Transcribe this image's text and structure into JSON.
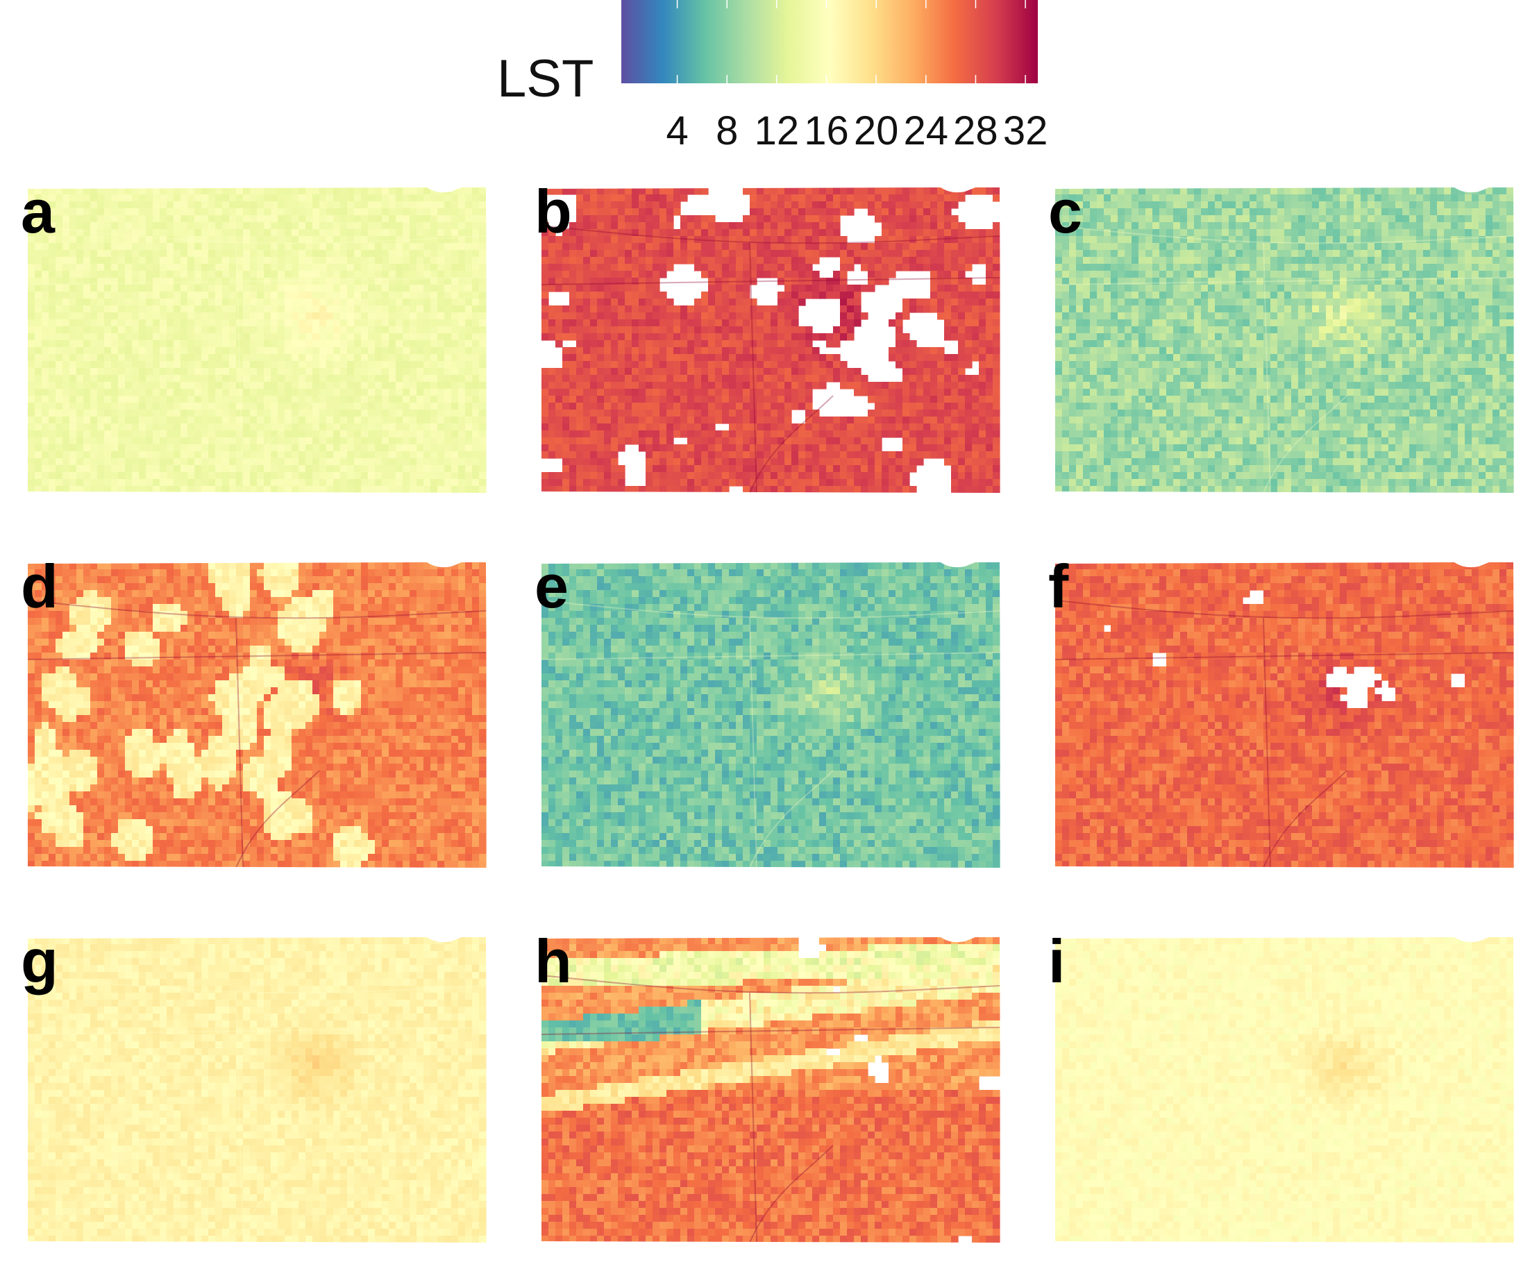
{
  "legend": {
    "title": "LST",
    "ticks": [
      4,
      8,
      12,
      16,
      20,
      24,
      28,
      32
    ],
    "tick_labels": [
      "4",
      "8",
      "12",
      "16",
      "20",
      "24",
      "28",
      "32"
    ],
    "range": [
      -0.5,
      33
    ]
  },
  "palette": [
    "#5e4fa2",
    "#3288bd",
    "#66c2a5",
    "#abdda4",
    "#e6f598",
    "#ffffbf",
    "#fee08b",
    "#fdae61",
    "#f46d43",
    "#d53e4f",
    "#9e0142"
  ],
  "panels": [
    {
      "label": "a",
      "base_lst": 14.5,
      "variation": 1.2,
      "hot_center": true,
      "gaps": "none",
      "clouds": "none"
    },
    {
      "label": "b",
      "base_lst": 28.5,
      "variation": 1.6,
      "hot_center": true,
      "gaps": "heavy",
      "clouds": "none"
    },
    {
      "label": "c",
      "base_lst": 9.0,
      "variation": 2.4,
      "hot_center": true,
      "gaps": "none",
      "clouds": "none"
    },
    {
      "label": "d",
      "base_lst": 25.0,
      "variation": 1.8,
      "hot_center": true,
      "gaps": "none",
      "clouds": "scattered"
    },
    {
      "label": "e",
      "base_lst": 7.0,
      "variation": 2.2,
      "hot_center": true,
      "gaps": "none",
      "clouds": "none"
    },
    {
      "label": "f",
      "base_lst": 26.5,
      "variation": 1.8,
      "hot_center": true,
      "gaps": "light",
      "clouds": "none"
    },
    {
      "label": "g",
      "base_lst": 17.5,
      "variation": 1.0,
      "hot_center": true,
      "gaps": "none",
      "clouds": "none"
    },
    {
      "label": "h",
      "base_lst": 26.0,
      "variation": 2.0,
      "hot_center": false,
      "gaps": "light",
      "clouds": "streaks"
    },
    {
      "label": "i",
      "base_lst": 16.5,
      "variation": 1.0,
      "hot_center": true,
      "gaps": "none",
      "clouds": "none"
    }
  ]
}
